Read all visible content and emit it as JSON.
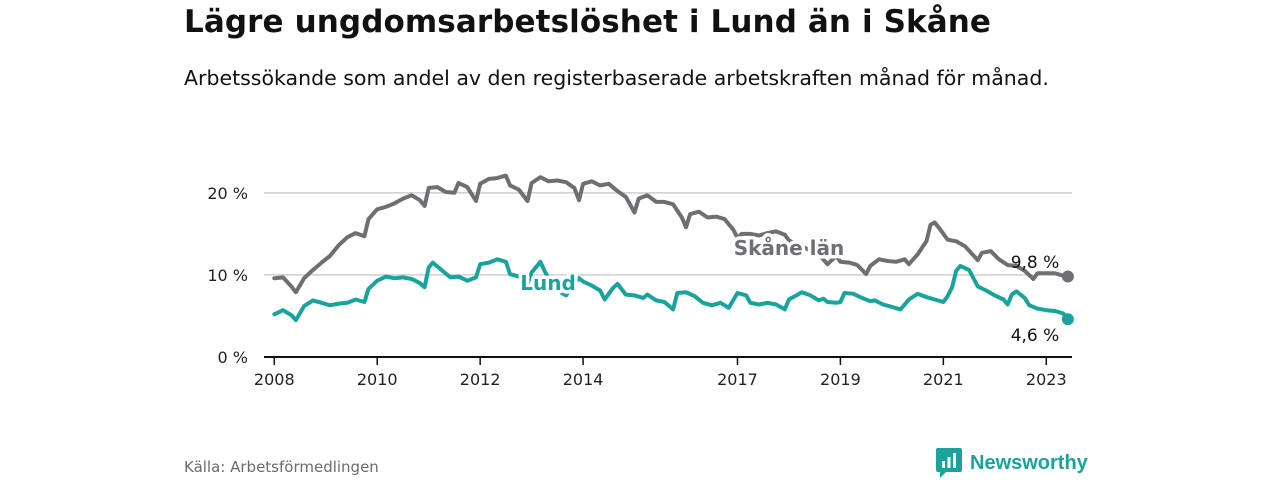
{
  "title": "Lägre ungdomsarbetslöshet i Lund än i Skåne",
  "subtitle": "Arbetssökande som andel av den registerbaserade arbetskraften månad för månad.",
  "source": "Källa: Arbetsförmedlingen",
  "brand": "Newsworthy",
  "colors": {
    "skane": "#6f6e74",
    "lund": "#1aa39a",
    "grid": "#cfcfcf",
    "axis": "#111111"
  },
  "chart_data": {
    "type": "line",
    "title": "Lägre ungdomsarbetslöshet i Lund än i Skåne",
    "xlabel": "",
    "ylabel": "",
    "ylim": [
      0,
      24
    ],
    "xlim": [
      2007.8,
      2023.5
    ],
    "yticks": [
      0,
      10,
      20
    ],
    "ytick_labels": [
      "0 %",
      "10 %",
      "20 %"
    ],
    "xticks": [
      2008,
      2010,
      2012,
      2014,
      2017,
      2019,
      2021,
      2023
    ],
    "xtick_labels": [
      "2008",
      "2010",
      "2012",
      "2014",
      "2017",
      "2019",
      "2021",
      "2023"
    ],
    "grid": true,
    "series": [
      {
        "name": "Skåne län",
        "label": "Skåne län",
        "end_label": "9,8 %",
        "points": [
          [
            2008.0,
            9.6
          ],
          [
            2008.17,
            9.7
          ],
          [
            2008.33,
            8.6
          ],
          [
            2008.42,
            7.9
          ],
          [
            2008.58,
            9.6
          ],
          [
            2008.75,
            10.6
          ],
          [
            2008.92,
            11.5
          ],
          [
            2009.08,
            12.3
          ],
          [
            2009.25,
            13.6
          ],
          [
            2009.42,
            14.6
          ],
          [
            2009.58,
            15.1
          ],
          [
            2009.75,
            14.7
          ],
          [
            2009.83,
            16.8
          ],
          [
            2010.0,
            18.0
          ],
          [
            2010.17,
            18.3
          ],
          [
            2010.33,
            18.7
          ],
          [
            2010.5,
            19.3
          ],
          [
            2010.67,
            19.7
          ],
          [
            2010.83,
            19.1
          ],
          [
            2010.92,
            18.4
          ],
          [
            2011.0,
            20.6
          ],
          [
            2011.17,
            20.7
          ],
          [
            2011.33,
            20.1
          ],
          [
            2011.5,
            20.0
          ],
          [
            2011.58,
            21.2
          ],
          [
            2011.75,
            20.7
          ],
          [
            2011.92,
            19.0
          ],
          [
            2012.0,
            21.1
          ],
          [
            2012.17,
            21.7
          ],
          [
            2012.33,
            21.8
          ],
          [
            2012.5,
            22.1
          ],
          [
            2012.58,
            20.9
          ],
          [
            2012.75,
            20.4
          ],
          [
            2012.92,
            19.0
          ],
          [
            2013.0,
            21.2
          ],
          [
            2013.17,
            21.9
          ],
          [
            2013.33,
            21.4
          ],
          [
            2013.5,
            21.5
          ],
          [
            2013.67,
            21.3
          ],
          [
            2013.83,
            20.6
          ],
          [
            2013.92,
            19.1
          ],
          [
            2014.0,
            21.1
          ],
          [
            2014.17,
            21.4
          ],
          [
            2014.33,
            20.9
          ],
          [
            2014.5,
            21.1
          ],
          [
            2014.67,
            20.2
          ],
          [
            2014.83,
            19.5
          ],
          [
            2015.0,
            17.6
          ],
          [
            2015.08,
            19.3
          ],
          [
            2015.25,
            19.7
          ],
          [
            2015.42,
            18.9
          ],
          [
            2015.58,
            18.9
          ],
          [
            2015.75,
            18.6
          ],
          [
            2015.92,
            17.0
          ],
          [
            2016.0,
            15.8
          ],
          [
            2016.08,
            17.4
          ],
          [
            2016.25,
            17.7
          ],
          [
            2016.42,
            17.0
          ],
          [
            2016.58,
            17.1
          ],
          [
            2016.75,
            16.8
          ],
          [
            2016.92,
            15.5
          ],
          [
            2017.0,
            14.5
          ],
          [
            2017.08,
            15.0
          ],
          [
            2017.25,
            15.0
          ],
          [
            2017.42,
            14.8
          ],
          [
            2017.58,
            15.1
          ],
          [
            2017.75,
            15.3
          ],
          [
            2017.92,
            14.9
          ],
          [
            2018.0,
            14.2
          ],
          [
            2018.58,
            12.5
          ],
          [
            2018.75,
            11.3
          ],
          [
            2018.92,
            12.3
          ],
          [
            2019.0,
            11.6
          ],
          [
            2019.17,
            11.5
          ],
          [
            2019.33,
            11.2
          ],
          [
            2019.5,
            10.1
          ],
          [
            2019.58,
            11.1
          ],
          [
            2019.75,
            11.9
          ],
          [
            2019.92,
            11.7
          ],
          [
            2020.08,
            11.6
          ],
          [
            2020.25,
            11.9
          ],
          [
            2020.33,
            11.3
          ],
          [
            2020.5,
            12.5
          ],
          [
            2020.67,
            14.1
          ],
          [
            2020.75,
            16.1
          ],
          [
            2020.83,
            16.4
          ],
          [
            2020.92,
            15.7
          ],
          [
            2021.08,
            14.3
          ],
          [
            2021.25,
            14.1
          ],
          [
            2021.42,
            13.5
          ],
          [
            2021.58,
            12.4
          ],
          [
            2021.67,
            11.8
          ],
          [
            2021.75,
            12.7
          ],
          [
            2021.92,
            12.9
          ],
          [
            2022.08,
            11.9
          ],
          [
            2022.25,
            11.2
          ],
          [
            2022.42,
            11.1
          ],
          [
            2022.58,
            10.5
          ],
          [
            2022.75,
            9.5
          ],
          [
            2022.83,
            10.2
          ],
          [
            2023.0,
            10.2
          ],
          [
            2023.17,
            10.2
          ],
          [
            2023.33,
            9.9
          ],
          [
            2023.42,
            10.2
          ],
          [
            2023.42,
            9.8
          ]
        ]
      },
      {
        "name": "Lund",
        "label": "Lund",
        "end_label": "4,6 %",
        "points": [
          [
            2008.0,
            5.2
          ],
          [
            2008.17,
            5.7
          ],
          [
            2008.33,
            5.1
          ],
          [
            2008.42,
            4.5
          ],
          [
            2008.58,
            6.2
          ],
          [
            2008.75,
            6.9
          ],
          [
            2008.92,
            6.6
          ],
          [
            2009.08,
            6.3
          ],
          [
            2009.25,
            6.5
          ],
          [
            2009.42,
            6.6
          ],
          [
            2009.58,
            7.0
          ],
          [
            2009.75,
            6.7
          ],
          [
            2009.83,
            8.3
          ],
          [
            2010.0,
            9.3
          ],
          [
            2010.17,
            9.8
          ],
          [
            2010.33,
            9.6
          ],
          [
            2010.5,
            9.7
          ],
          [
            2010.67,
            9.5
          ],
          [
            2010.83,
            9.0
          ],
          [
            2010.92,
            8.5
          ],
          [
            2011.0,
            10.9
          ],
          [
            2011.08,
            11.5
          ],
          [
            2011.25,
            10.6
          ],
          [
            2011.42,
            9.7
          ],
          [
            2011.58,
            9.8
          ],
          [
            2011.75,
            9.3
          ],
          [
            2011.92,
            9.7
          ],
          [
            2012.0,
            11.3
          ],
          [
            2012.17,
            11.5
          ],
          [
            2012.33,
            11.9
          ],
          [
            2012.5,
            11.6
          ],
          [
            2012.58,
            10.1
          ],
          [
            2012.75,
            9.8
          ],
          [
            2012.92,
            8.9
          ],
          [
            2013.0,
            10.3
          ],
          [
            2013.17,
            11.6
          ],
          [
            2013.25,
            10.5
          ],
          [
            2013.33,
            9.6
          ],
          [
            2013.5,
            9.1
          ],
          [
            2013.58,
            7.8
          ],
          [
            2013.67,
            7.5
          ],
          [
            2013.75,
            8.4
          ],
          [
            2013.92,
            9.6
          ],
          [
            2014.0,
            9.2
          ],
          [
            2014.17,
            8.7
          ],
          [
            2014.33,
            8.1
          ],
          [
            2014.42,
            7.0
          ],
          [
            2014.58,
            8.4
          ],
          [
            2014.67,
            8.9
          ],
          [
            2014.83,
            7.6
          ],
          [
            2015.0,
            7.5
          ],
          [
            2015.17,
            7.2
          ],
          [
            2015.25,
            7.6
          ],
          [
            2015.42,
            6.9
          ],
          [
            2015.58,
            6.7
          ],
          [
            2015.75,
            5.8
          ],
          [
            2015.83,
            7.8
          ],
          [
            2016.0,
            7.9
          ],
          [
            2016.17,
            7.4
          ],
          [
            2016.33,
            6.6
          ],
          [
            2016.5,
            6.3
          ],
          [
            2016.67,
            6.6
          ],
          [
            2016.83,
            6.0
          ],
          [
            2017.0,
            7.8
          ],
          [
            2017.17,
            7.5
          ],
          [
            2017.25,
            6.6
          ],
          [
            2017.42,
            6.4
          ],
          [
            2017.58,
            6.6
          ],
          [
            2017.75,
            6.4
          ],
          [
            2017.92,
            5.8
          ],
          [
            2018.0,
            7.0
          ],
          [
            2018.17,
            7.6
          ],
          [
            2018.25,
            7.9
          ],
          [
            2018.42,
            7.5
          ],
          [
            2018.58,
            6.9
          ],
          [
            2018.67,
            7.1
          ],
          [
            2018.75,
            6.7
          ],
          [
            2018.92,
            6.6
          ],
          [
            2019.0,
            6.7
          ],
          [
            2019.08,
            7.8
          ],
          [
            2019.25,
            7.7
          ],
          [
            2019.42,
            7.2
          ],
          [
            2019.58,
            6.8
          ],
          [
            2019.67,
            6.9
          ],
          [
            2019.83,
            6.4
          ],
          [
            2020.0,
            6.1
          ],
          [
            2020.17,
            5.8
          ],
          [
            2020.33,
            7.0
          ],
          [
            2020.5,
            7.7
          ],
          [
            2020.67,
            7.3
          ],
          [
            2020.83,
            7.0
          ],
          [
            2021.0,
            6.7
          ],
          [
            2021.08,
            7.4
          ],
          [
            2021.17,
            8.5
          ],
          [
            2021.25,
            10.5
          ],
          [
            2021.33,
            11.1
          ],
          [
            2021.5,
            10.6
          ],
          [
            2021.67,
            8.6
          ],
          [
            2021.83,
            8.1
          ],
          [
            2022.0,
            7.5
          ],
          [
            2022.17,
            7.0
          ],
          [
            2022.25,
            6.4
          ],
          [
            2022.33,
            7.6
          ],
          [
            2022.42,
            8.0
          ],
          [
            2022.58,
            7.2
          ],
          [
            2022.67,
            6.3
          ],
          [
            2022.83,
            5.9
          ],
          [
            2023.0,
            5.7
          ],
          [
            2023.17,
            5.6
          ],
          [
            2023.33,
            5.3
          ],
          [
            2023.42,
            4.6
          ]
        ]
      }
    ]
  }
}
